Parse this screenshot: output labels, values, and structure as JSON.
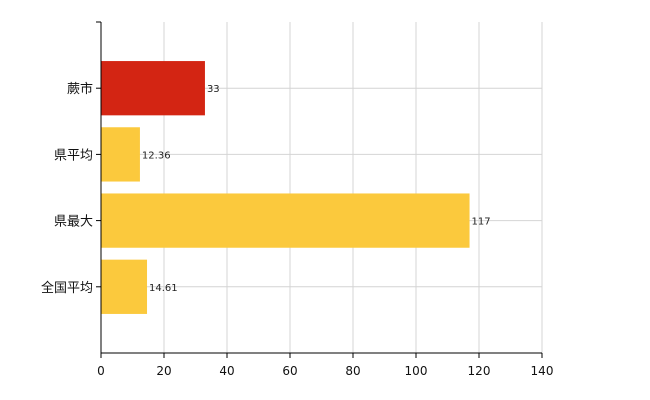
{
  "chart_data": {
    "type": "bar",
    "orientation": "horizontal",
    "categories": [
      "蕨市",
      "県平均",
      "県最大",
      "全国平均"
    ],
    "values": [
      33,
      12.36,
      117,
      14.61
    ],
    "data_labels": [
      "33",
      "12.36",
      "117",
      "14.61"
    ],
    "bar_colors": [
      "#d32513",
      "#fbc93d",
      "#fbc93d",
      "#fbc93d"
    ],
    "xlim": [
      0,
      140
    ],
    "xticks": [
      0,
      20,
      40,
      60,
      80,
      100,
      120,
      140
    ],
    "xtick_labels": [
      "0",
      "20",
      "40",
      "60",
      "80",
      "100",
      "120",
      "140"
    ],
    "grid": true,
    "title": "",
    "xlabel": "",
    "ylabel": ""
  }
}
